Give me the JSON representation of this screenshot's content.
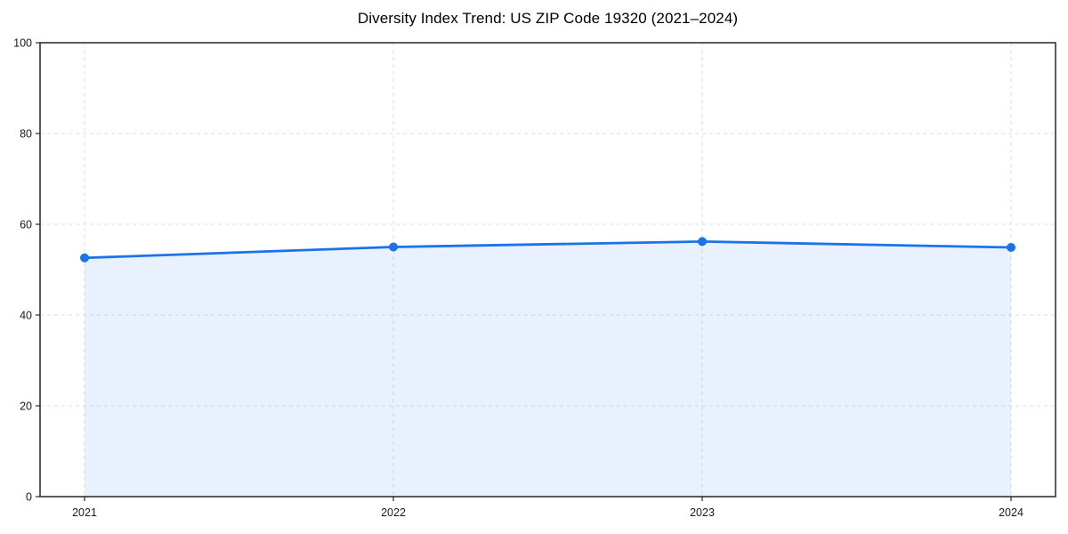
{
  "chart_data": {
    "type": "area",
    "title": "Diversity Index Trend: US ZIP Code 19320 (2021–2024)",
    "categories": [
      "2021",
      "2022",
      "2023",
      "2024"
    ],
    "series": [
      {
        "name": "Diversity Index",
        "values": [
          52.6,
          55.0,
          56.2,
          54.9
        ]
      }
    ],
    "xlabel": "",
    "ylabel": "",
    "ylim": [
      0,
      100
    ],
    "y_ticks": [
      0,
      20,
      40,
      60,
      80,
      100
    ],
    "grid": true,
    "grid_style": "dashed",
    "legend": false,
    "colors": {
      "line": "#1a73e8",
      "marker": "#1a73e8",
      "fill": "rgba(26,115,232,0.10)",
      "grid": "#dedede",
      "spine": "#262626",
      "tick_text": "#1a1a1a",
      "title_text": "#000000"
    }
  }
}
